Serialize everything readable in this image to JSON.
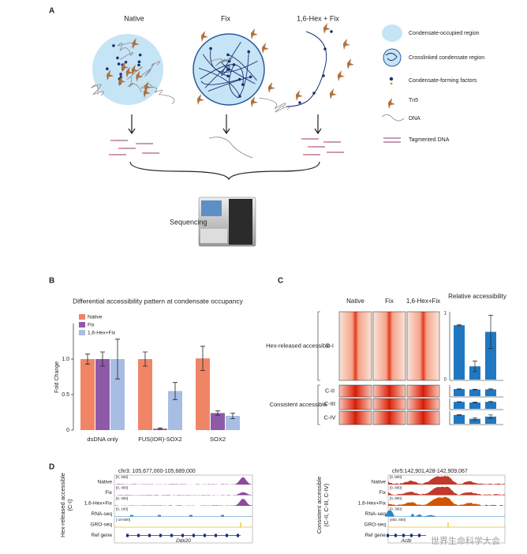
{
  "panel_a": {
    "label": "A",
    "conditions": [
      "Native",
      "Fix",
      "1,6-Hex + Fix"
    ],
    "legend": [
      "Condensate-occupied region",
      "Crosslinked condensate region",
      "Condensate-forming factors",
      "Tn5",
      "DNA",
      "Tagmented DNA"
    ],
    "step": "Sequencing"
  },
  "chart_data": {
    "label": "B",
    "type": "bar",
    "title": "Differential accessibility pattern at condensate occupancy",
    "y_label": "Fold Change",
    "categories": [
      "dsDNA only",
      "FUS(IDR)-SOX2",
      "SOX2"
    ],
    "series": [
      {
        "name": "Native",
        "color": "#f08566",
        "values": [
          1.0,
          1.0,
          1.01
        ],
        "errors": [
          0.07,
          0.1,
          0.17
        ]
      },
      {
        "name": "Fix",
        "color": "#8e5aa8",
        "values": [
          1.0,
          0.02,
          0.24
        ],
        "errors": [
          0.1,
          0.01,
          0.03
        ]
      },
      {
        "name": "1,6-Hex+Fix",
        "color": "#a8bde3",
        "values": [
          1.0,
          0.55,
          0.2
        ],
        "errors": [
          0.28,
          0.12,
          0.04
        ]
      }
    ],
    "ylim": [
      0,
      1.5
    ],
    "yticks": [
      0,
      0.5,
      {
        "value": 1,
        "label": "1.0"
      }
    ]
  },
  "panel_c": {
    "label": "C",
    "columns": [
      "Native",
      "Fix",
      "1,6-Hex+Fix"
    ],
    "bar_title": "Relative accessibility",
    "color": "#1f78c1",
    "ylim": [
      0,
      1
    ],
    "yticks": [
      0,
      1
    ],
    "groups": [
      {
        "name": "Hex-released accessible",
        "clusters": [
          {
            "name": "C-I",
            "values": [
              0.82,
              0.2,
              0.72
            ],
            "errors": [
              0.01,
              0.08,
              0.25
            ]
          }
        ]
      },
      {
        "name": "Consistent accessible",
        "clusters": [
          {
            "name": "C-II",
            "values": [
              0.75,
              0.7,
              0.72
            ],
            "errors": [
              0.02,
              0.03,
              0.05
            ]
          },
          {
            "name": "C-III",
            "values": [
              0.8,
              0.72,
              0.8
            ],
            "errors": [
              0.02,
              0.04,
              0.06
            ]
          },
          {
            "name": "C-IV",
            "values": [
              0.8,
              0.45,
              0.65
            ],
            "errors": [
              0.02,
              0.1,
              0.15
            ]
          }
        ]
      }
    ]
  },
  "panel_d": {
    "label": "D",
    "loci": [
      {
        "group": [
          "Hex-released accessible",
          "(C-I)"
        ],
        "coords": "chr3: 105,677,000-105,689,000",
        "gene": "Ddx20",
        "tracks": [
          {
            "name": "Native",
            "scale": "[0, 400]"
          },
          {
            "name": "Fix",
            "scale": "[0, 400]"
          },
          {
            "name": "1,6-Hex+Fix",
            "scale": "[0, 400]"
          },
          {
            "name": "RNA-seq",
            "scale": "[0, 100]"
          },
          {
            "name": "GRO-seq",
            "scale": "[-10-600]"
          },
          {
            "name": "Ref gene"
          }
        ]
      },
      {
        "group": [
          "Consistent accessible",
          "(C-II, C-III, C-IV)"
        ],
        "coords": "chr5:142,901,428-142,909,067",
        "gene": "Actb",
        "tracks": [
          {
            "name": "Native",
            "scale": "[0, 800]"
          },
          {
            "name": "Fix",
            "scale": "[0, 800]"
          },
          {
            "name": "1,6-Hex+Fix",
            "scale": "[0, 800]"
          },
          {
            "name": "RNA-seq",
            "scale": "[0, 300]"
          },
          {
            "name": "GRO-seq",
            "scale": "[400, 600]"
          },
          {
            "name": "Ref gene"
          }
        ]
      }
    ]
  },
  "watermark": "世界生命科学大会"
}
